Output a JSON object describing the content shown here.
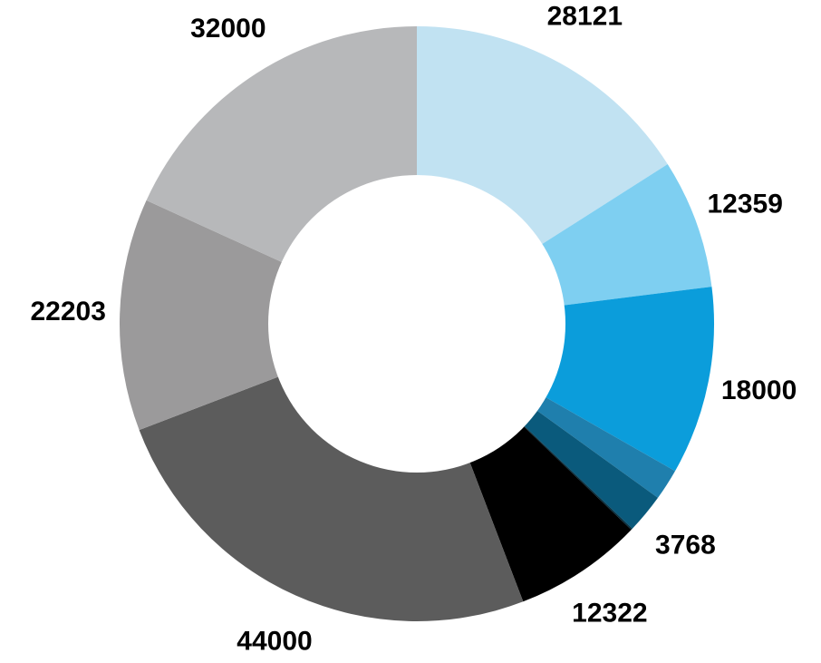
{
  "chart_data": {
    "type": "pie",
    "donut": true,
    "title": "",
    "legend": "none",
    "slices": [
      {
        "label": "28121",
        "value": 28121,
        "color": "#c1e2f2"
      },
      {
        "label": "12359",
        "value": 12359,
        "color": "#7ecff1"
      },
      {
        "label": "18000",
        "value": 18000,
        "color": "#0b9ddb"
      },
      {
        "label": "",
        "value": 3000,
        "color": "#1f7fad"
      },
      {
        "label": "3768",
        "value": 3768,
        "color": "#0a5a7c"
      },
      {
        "label": "",
        "value": 150,
        "color": "#062f40"
      },
      {
        "label": "12322",
        "value": 12322,
        "color": "#000000"
      },
      {
        "label": "44000",
        "value": 44000,
        "color": "#5c5c5c"
      },
      {
        "label": "22203",
        "value": 22203,
        "color": "#9b9a9b"
      },
      {
        "label": "32000",
        "value": 32000,
        "color": "#b7b8ba"
      }
    ]
  }
}
